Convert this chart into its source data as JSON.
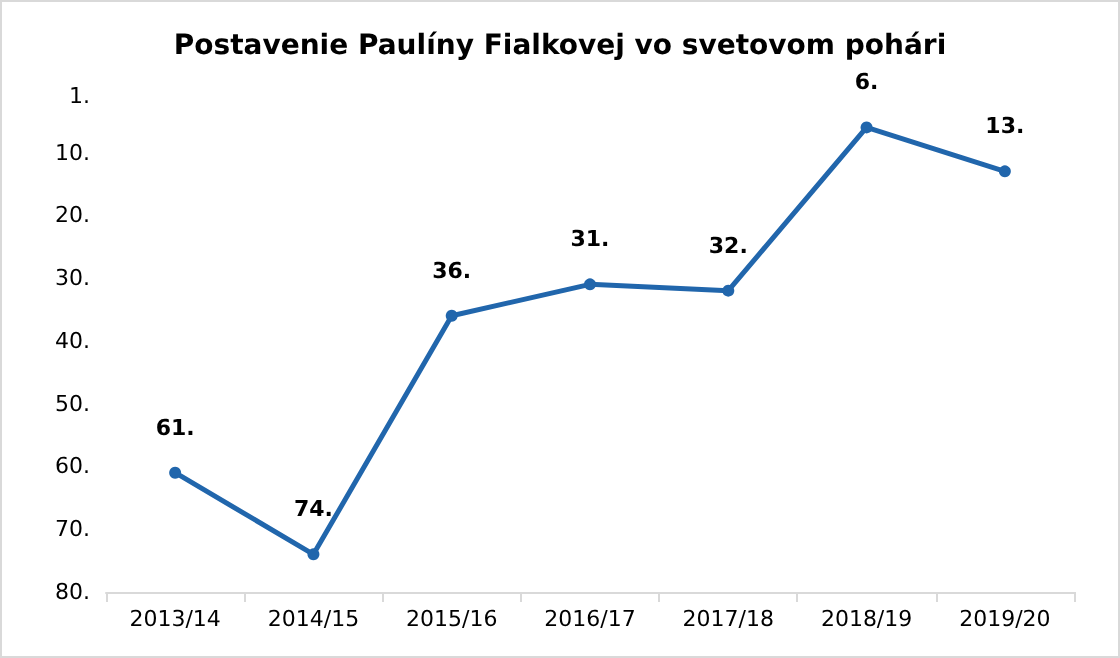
{
  "chart_data": {
    "type": "line",
    "title": "Postavenie Paulíny Fialkovej vo svetovom pohári",
    "categories": [
      "2013/14",
      "2014/15",
      "2015/16",
      "2016/17",
      "2017/18",
      "2018/19",
      "2019/20"
    ],
    "series": [
      {
        "color": "#2166ac",
        "values": [
          61,
          74,
          36,
          31,
          32,
          6,
          13
        ],
        "value_labels": [
          "61.",
          "74.",
          "36.",
          "31.",
          "32.",
          "6.",
          "13."
        ]
      }
    ],
    "ylim": [
      80,
      1
    ],
    "yticks": [
      {
        "value": 1,
        "label": "1."
      },
      {
        "value": 10,
        "label": "10."
      },
      {
        "value": 20,
        "label": "20."
      },
      {
        "value": 30,
        "label": "30."
      },
      {
        "value": 40,
        "label": "40."
      },
      {
        "value": 50,
        "label": "50."
      },
      {
        "value": 60,
        "label": "60."
      },
      {
        "value": 70,
        "label": "70."
      },
      {
        "value": 80,
        "label": "80."
      }
    ],
    "grid": false,
    "marker": "circle",
    "line_style": "solid"
  }
}
